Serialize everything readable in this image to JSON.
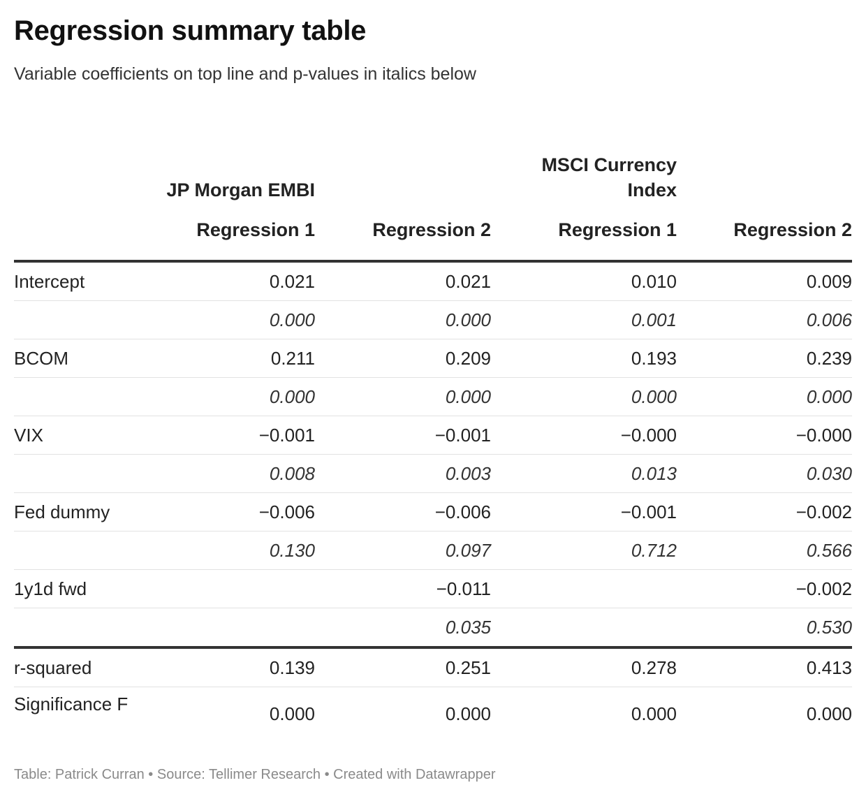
{
  "title": "Regression summary table",
  "subtitle": "Variable coefficients on top line and p-values in italics below",
  "groups": {
    "g1": "JP Morgan EMBI",
    "g2": "MSCI Currency Index"
  },
  "columns": [
    "Regression 1",
    "Regression 2",
    "Regression 1",
    "Regression 2"
  ],
  "rows": [
    {
      "label": "Intercept",
      "values": [
        "0.021",
        "0.021",
        "0.010",
        "0.009"
      ]
    },
    {
      "label": "",
      "values": [
        "0.000",
        "0.000",
        "0.001",
        "0.006"
      ]
    },
    {
      "label": "BCOM",
      "values": [
        "0.211",
        "0.209",
        "0.193",
        "0.239"
      ]
    },
    {
      "label": "",
      "values": [
        "0.000",
        "0.000",
        "0.000",
        "0.000"
      ]
    },
    {
      "label": "VIX",
      "values": [
        "−0.001",
        "−0.001",
        "−0.000",
        "−0.000"
      ]
    },
    {
      "label": "",
      "values": [
        "0.008",
        "0.003",
        "0.013",
        "0.030"
      ]
    },
    {
      "label": "Fed dummy",
      "values": [
        "−0.006",
        "−0.006",
        "−0.001",
        "−0.002"
      ]
    },
    {
      "label": "",
      "values": [
        "0.130",
        "0.097",
        "0.712",
        "0.566"
      ]
    },
    {
      "label": "1y1d fwd",
      "values": [
        "",
        "−0.011",
        "",
        "−0.002"
      ]
    },
    {
      "label": "",
      "values": [
        "",
        "0.035",
        "",
        "0.530"
      ]
    },
    {
      "label": "r-squared",
      "values": [
        "0.139",
        "0.251",
        "0.278",
        "0.413"
      ]
    },
    {
      "label": "Significance F",
      "values": [
        "0.000",
        "0.000",
        "0.000",
        "0.000"
      ]
    }
  ],
  "footer": "Table: Patrick Curran • Source: Tellimer Research • Created with Datawrapper"
}
